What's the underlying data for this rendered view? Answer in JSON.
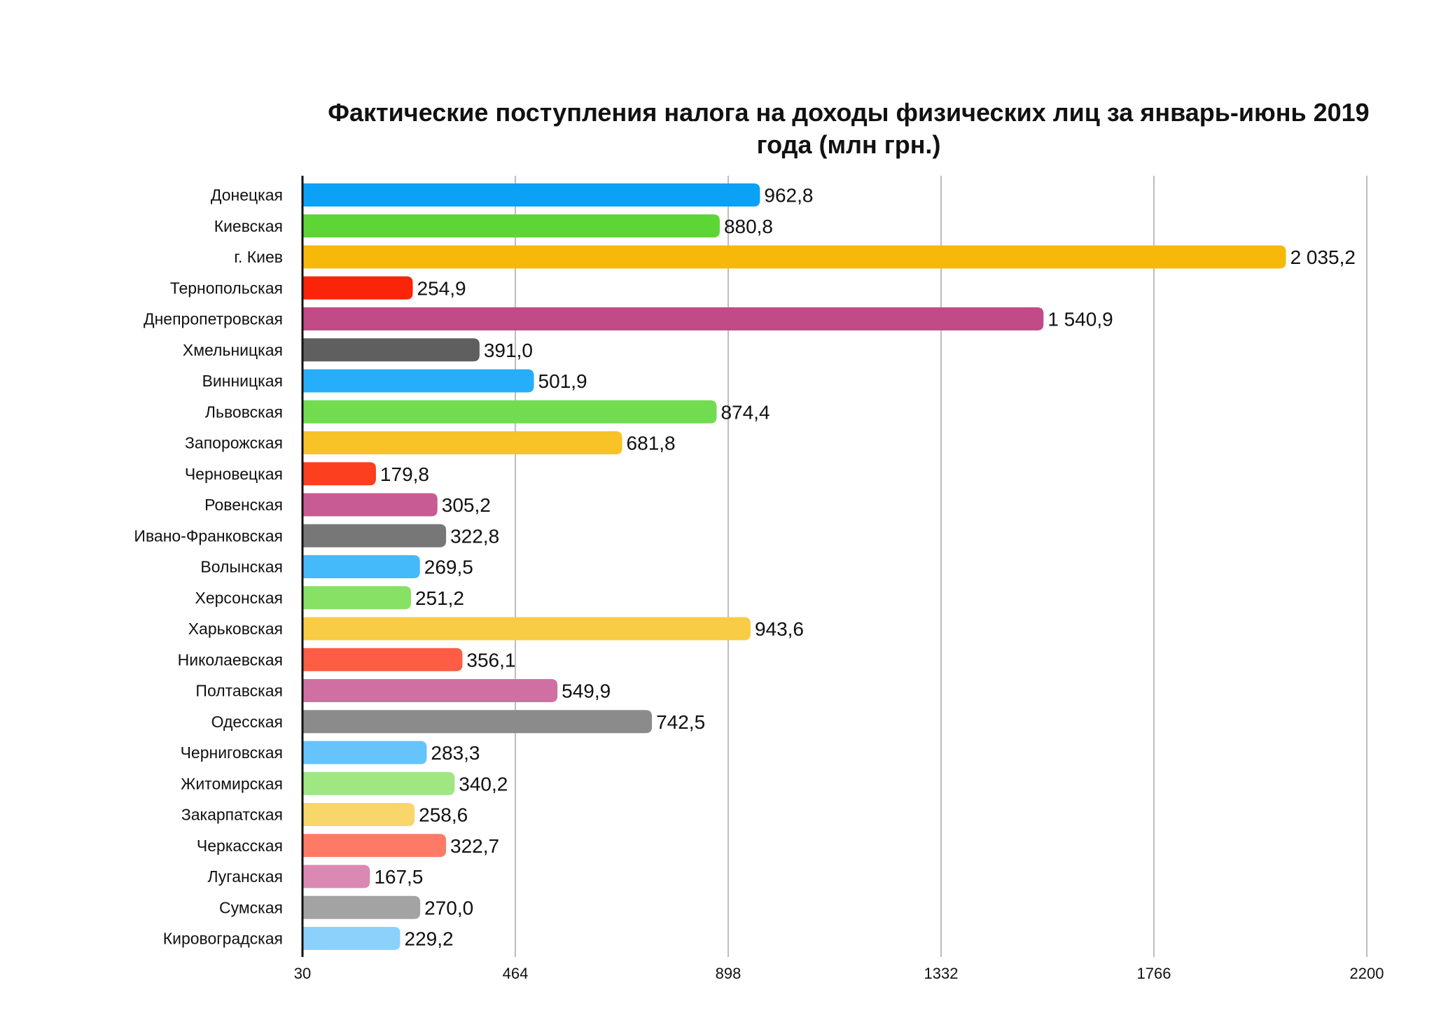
{
  "chart_data": {
    "type": "bar",
    "orientation": "horizontal",
    "title": "Фактические поступления налога на доходы физических лиц за январь-июнь 2019 года (млн грн.)",
    "title_lines": [
      "Фактические поступления налога на доходы физических лиц за январь-июнь 2019",
      "года (млн грн.)"
    ],
    "xlabel": "",
    "ylabel": "",
    "xlim": [
      30,
      2200
    ],
    "x_ticks": [
      30,
      464,
      898,
      1332,
      1766,
      2200
    ],
    "x_tick_labels": [
      "30",
      "464",
      "898",
      "1332",
      "1766",
      "2200"
    ],
    "grid": "vertical",
    "legend": "none",
    "categories": [
      "Донецкая",
      "Киевская",
      "г. Киев",
      "Тернопольская",
      "Днепропетровская",
      "Хмельницкая",
      "Винницкая",
      "Львовская",
      "Запорожская",
      "Черновецкая",
      "Ровенская",
      "Ивано-Франковская",
      "Волынская",
      "Херсонская",
      "Харьковская",
      "Николаевская",
      "Полтавская",
      "Одесская",
      "Черниговская",
      "Житомирская",
      "Закарпатская",
      "Черкасская",
      "Луганская",
      "Сумская",
      "Кировоградская"
    ],
    "values": [
      962.8,
      880.8,
      2035.2,
      254.9,
      1540.9,
      391.0,
      501.9,
      874.4,
      681.8,
      179.8,
      305.2,
      322.8,
      269.5,
      251.2,
      943.6,
      356.1,
      549.9,
      742.5,
      283.3,
      340.2,
      258.6,
      322.7,
      167.5,
      270.0,
      229.2
    ],
    "value_labels": [
      "962,8",
      "880,8",
      "2 035,2",
      "254,9",
      "1 540,9",
      "391,0",
      "501,9",
      "874,4",
      "681,8",
      "179,8",
      "305,2",
      "322,8",
      "269,5",
      "251,2",
      "943,6",
      "356,1",
      "549,9",
      "742,5",
      "283,3",
      "340,2",
      "258,6",
      "322,7",
      "167,5",
      "270,0",
      "229,2"
    ],
    "colors": [
      "#0aa1f7",
      "#5dd534",
      "#f6b90a",
      "#fa2409",
      "#c04b86",
      "#5f5f5f",
      "#27aefa",
      "#71dc4f",
      "#f7c328",
      "#fc3f1f",
      "#c85b93",
      "#777777",
      "#45bafa",
      "#86e164",
      "#f8cc45",
      "#fd5d44",
      "#d070a2",
      "#8b8b8b",
      "#65c4fb",
      "#9ee781",
      "#f9d669",
      "#fd7b66",
      "#d989b4",
      "#a3a3a3",
      "#8bd1fb"
    ]
  }
}
